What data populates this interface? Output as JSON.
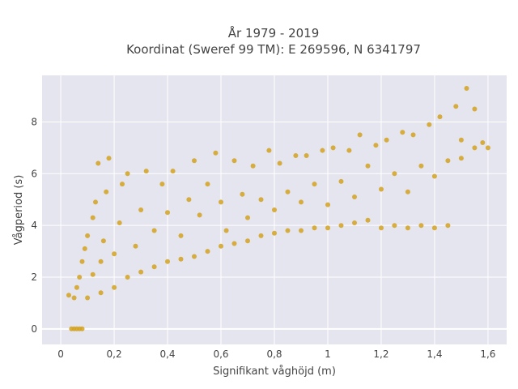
{
  "chart_data": {
    "type": "scatter",
    "title_lines": [
      "År 1979 - 2019",
      "Koordinat (Sweref 99 TM): E 269596, N 6341797"
    ],
    "xlabel": "Signifikant våghöjd (m)",
    "ylabel": "Vågperiod (s)",
    "xlim": [
      -0.07,
      1.67
    ],
    "ylim": [
      -0.6,
      9.8
    ],
    "x_ticks": [
      0,
      0.2,
      0.4,
      0.6,
      0.8,
      1,
      1.2,
      1.4,
      1.6
    ],
    "x_tick_labels": [
      "0",
      "0,2",
      "0,4",
      "0,6",
      "0,8",
      "1",
      "1,2",
      "1,4",
      "1,6"
    ],
    "y_ticks": [
      0,
      2,
      4,
      6,
      8
    ],
    "y_tick_labels": [
      "0",
      "2",
      "4",
      "6",
      "8"
    ],
    "grid": true,
    "legend": "none",
    "marker_color": "#d4a21f",
    "plot_background": "#e5e5ef",
    "series": [
      {
        "values": [
          [
            0.03,
            1.3
          ],
          [
            0.04,
            0
          ],
          [
            0.05,
            0
          ],
          [
            0.06,
            0
          ],
          [
            0.07,
            0
          ],
          [
            0.08,
            0
          ],
          [
            0.05,
            1.2
          ],
          [
            0.06,
            1.6
          ],
          [
            0.07,
            2.0
          ],
          [
            0.08,
            2.6
          ],
          [
            0.09,
            3.1
          ],
          [
            0.1,
            1.2
          ],
          [
            0.1,
            3.6
          ],
          [
            0.12,
            2.1
          ],
          [
            0.12,
            4.3
          ],
          [
            0.13,
            4.9
          ],
          [
            0.14,
            6.4
          ],
          [
            0.15,
            1.4
          ],
          [
            0.15,
            2.6
          ],
          [
            0.16,
            3.4
          ],
          [
            0.17,
            5.3
          ],
          [
            0.18,
            6.6
          ],
          [
            0.2,
            1.6
          ],
          [
            0.2,
            2.9
          ],
          [
            0.22,
            4.1
          ],
          [
            0.23,
            5.6
          ],
          [
            0.25,
            2.0
          ],
          [
            0.25,
            6.0
          ],
          [
            0.28,
            3.2
          ],
          [
            0.3,
            2.2
          ],
          [
            0.3,
            4.6
          ],
          [
            0.32,
            6.1
          ],
          [
            0.35,
            2.4
          ],
          [
            0.35,
            3.8
          ],
          [
            0.38,
            5.6
          ],
          [
            0.4,
            2.6
          ],
          [
            0.4,
            4.5
          ],
          [
            0.42,
            6.1
          ],
          [
            0.45,
            2.7
          ],
          [
            0.45,
            3.6
          ],
          [
            0.48,
            5.0
          ],
          [
            0.5,
            2.8
          ],
          [
            0.5,
            6.5
          ],
          [
            0.52,
            4.4
          ],
          [
            0.55,
            3.0
          ],
          [
            0.55,
            5.6
          ],
          [
            0.58,
            6.8
          ],
          [
            0.6,
            3.2
          ],
          [
            0.6,
            4.9
          ],
          [
            0.62,
            3.8
          ],
          [
            0.65,
            3.3
          ],
          [
            0.65,
            6.5
          ],
          [
            0.68,
            5.2
          ],
          [
            0.7,
            3.4
          ],
          [
            0.7,
            4.3
          ],
          [
            0.72,
            6.3
          ],
          [
            0.75,
            3.6
          ],
          [
            0.75,
            5.0
          ],
          [
            0.78,
            6.9
          ],
          [
            0.8,
            3.7
          ],
          [
            0.8,
            4.6
          ],
          [
            0.82,
            6.4
          ],
          [
            0.85,
            3.8
          ],
          [
            0.85,
            5.3
          ],
          [
            0.88,
            6.7
          ],
          [
            0.9,
            3.8
          ],
          [
            0.9,
            4.9
          ],
          [
            0.92,
            6.7
          ],
          [
            0.95,
            3.9
          ],
          [
            0.95,
            5.6
          ],
          [
            0.98,
            6.9
          ],
          [
            1.0,
            3.9
          ],
          [
            1.0,
            4.8
          ],
          [
            1.02,
            7.0
          ],
          [
            1.05,
            4.0
          ],
          [
            1.05,
            5.7
          ],
          [
            1.08,
            6.9
          ],
          [
            1.1,
            4.1
          ],
          [
            1.1,
            5.1
          ],
          [
            1.12,
            7.5
          ],
          [
            1.15,
            4.2
          ],
          [
            1.15,
            6.3
          ],
          [
            1.18,
            7.1
          ],
          [
            1.2,
            3.9
          ],
          [
            1.2,
            5.4
          ],
          [
            1.22,
            7.3
          ],
          [
            1.25,
            4.0
          ],
          [
            1.25,
            6.0
          ],
          [
            1.28,
            7.6
          ],
          [
            1.3,
            3.9
          ],
          [
            1.3,
            5.3
          ],
          [
            1.32,
            7.5
          ],
          [
            1.35,
            4.0
          ],
          [
            1.35,
            6.3
          ],
          [
            1.38,
            7.9
          ],
          [
            1.4,
            3.9
          ],
          [
            1.4,
            5.9
          ],
          [
            1.42,
            8.2
          ],
          [
            1.45,
            4.0
          ],
          [
            1.45,
            6.5
          ],
          [
            1.48,
            8.6
          ],
          [
            1.5,
            6.6
          ],
          [
            1.5,
            7.3
          ],
          [
            1.52,
            9.3
          ],
          [
            1.55,
            7.0
          ],
          [
            1.55,
            8.5
          ],
          [
            1.58,
            7.2
          ],
          [
            1.6,
            7.0
          ]
        ]
      }
    ]
  }
}
